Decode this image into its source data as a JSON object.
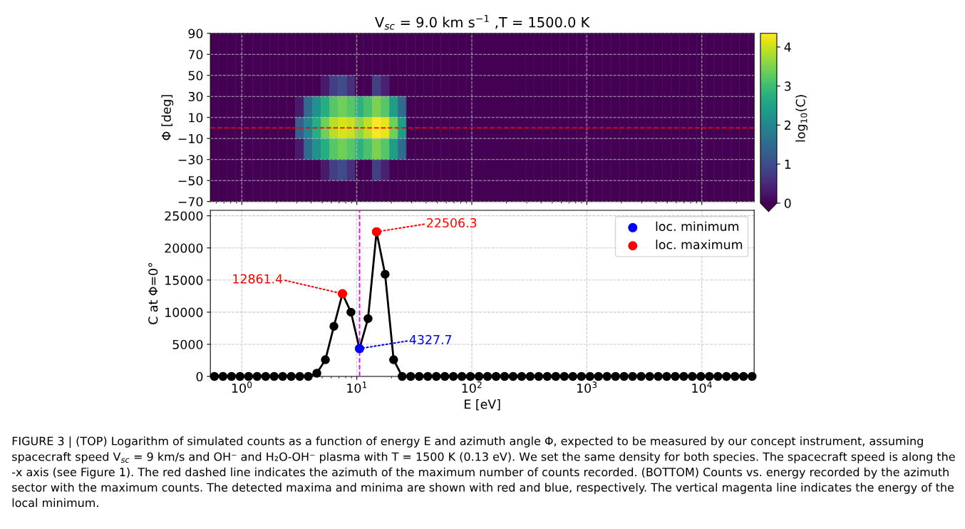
{
  "chart_data": [
    {
      "type": "heatmap",
      "title": "V$_{sc}$ = 9.0 km s$^{−1}$ ,T = 1500.0 K",
      "ylabel": "Φ [deg]",
      "clabel": "log$_{10}$(C)",
      "x": [
        0.578,
        0.686,
        0.814,
        0.965,
        1.145,
        1.358,
        1.612,
        1.912,
        2.268,
        2.691,
        3.192,
        3.787,
        4.493,
        5.33,
        6.323,
        7.499,
        8.897,
        10.55,
        12.52,
        14.85,
        17.62,
        20.9,
        24.8,
        29.42,
        34.9,
        41.4,
        49.12,
        58.27,
        69.13,
        82.01,
        97.3,
        115.4,
        136.9,
        162.4,
        192.7,
        228.6,
        271.2,
        321.7,
        381.7,
        452.8,
        537.0,
        637.2,
        755.9,
        896.8,
        1064,
        1262,
        1497,
        1776,
        2107,
        2500,
        2965,
        3518,
        4173,
        4951,
        5874,
        6966,
        8266,
        9804,
        11630,
        13800,
        16370,
        19420,
        23040,
        27340
      ],
      "cells": [
        [
          0,
          0,
          0,
          0,
          0,
          0,
          0,
          0,
          0,
          0,
          0,
          0,
          0,
          0,
          0,
          0,
          0,
          0,
          0,
          0,
          0,
          0,
          0,
          0,
          0,
          0,
          0,
          0,
          0,
          0,
          0,
          0,
          0,
          0,
          0,
          0,
          0,
          0,
          0,
          0,
          0,
          0,
          0,
          0,
          0,
          0,
          0,
          0,
          0,
          0,
          0,
          0,
          0,
          0,
          0,
          0,
          0,
          0,
          0,
          0,
          0,
          0,
          0,
          0
        ],
        [
          0,
          0,
          0,
          0,
          0,
          0,
          0,
          0,
          0,
          0,
          0,
          0,
          0,
          0,
          0,
          0,
          0,
          0,
          0,
          0,
          0,
          0,
          0,
          0,
          0,
          0,
          0,
          0,
          0,
          0,
          0,
          0,
          0,
          0,
          0,
          0,
          0,
          0,
          0,
          0,
          0,
          0,
          0,
          0,
          0,
          0,
          0,
          0,
          0,
          0,
          0,
          0,
          0,
          0,
          0,
          0,
          0,
          0,
          0,
          0,
          0,
          0,
          0,
          0
        ],
        [
          0,
          0,
          0,
          0,
          0,
          0,
          0,
          0,
          0,
          0,
          0,
          0,
          0,
          0.3,
          0.8,
          1.0,
          0.6,
          0,
          0,
          0.8,
          0.4,
          0,
          0,
          0,
          0,
          0,
          0,
          0,
          0,
          0,
          0,
          0,
          0,
          0,
          0,
          0,
          0,
          0,
          0,
          0,
          0,
          0,
          0,
          0,
          0,
          0,
          0,
          0,
          0,
          0,
          0,
          0,
          0,
          0,
          0,
          0,
          0,
          0,
          0,
          0,
          0,
          0,
          0,
          0
        ],
        [
          0,
          0,
          0,
          0,
          0,
          0,
          0,
          0,
          0,
          0,
          0.3,
          1.5,
          2.2,
          2.7,
          3.2,
          3.4,
          3.2,
          2.8,
          3.1,
          3.5,
          3.2,
          2.4,
          1.5,
          0,
          0,
          0,
          0,
          0,
          0,
          0,
          0,
          0,
          0,
          0,
          0,
          0,
          0,
          0,
          0,
          0,
          0,
          0,
          0,
          0,
          0,
          0,
          0,
          0,
          0,
          0,
          0,
          0,
          0,
          0,
          0,
          0,
          0,
          0,
          0,
          0,
          0,
          0,
          0,
          0
        ],
        [
          0,
          0,
          0,
          0,
          0,
          0,
          0,
          0,
          0,
          0,
          1.3,
          2.0,
          2.7,
          3.4,
          3.9,
          4.1,
          4.0,
          3.6,
          3.95,
          4.35,
          4.2,
          3.4,
          2.4,
          0,
          0,
          0,
          0,
          0,
          0,
          0,
          0,
          0,
          0,
          0,
          0,
          0,
          0,
          0,
          0,
          0,
          0,
          0,
          0,
          0,
          0,
          0,
          0,
          0,
          0,
          0,
          0,
          0,
          0,
          0,
          0,
          0,
          0,
          0,
          0,
          0,
          0,
          0,
          0,
          0
        ],
        [
          0,
          0,
          0,
          0,
          0,
          0,
          0,
          0,
          0,
          0,
          0.3,
          1.5,
          2.2,
          2.7,
          3.2,
          3.4,
          3.2,
          2.8,
          3.1,
          3.5,
          3.2,
          2.4,
          1.5,
          0,
          0,
          0,
          0,
          0,
          0,
          0,
          0,
          0,
          0,
          0,
          0,
          0,
          0,
          0,
          0,
          0,
          0,
          0,
          0,
          0,
          0,
          0,
          0,
          0,
          0,
          0,
          0,
          0,
          0,
          0,
          0,
          0,
          0,
          0,
          0,
          0,
          0,
          0,
          0,
          0
        ],
        [
          0,
          0,
          0,
          0,
          0,
          0,
          0,
          0,
          0,
          0,
          0,
          0,
          0,
          0.3,
          0.8,
          1.0,
          0.6,
          0,
          0,
          0.8,
          0.4,
          0,
          0,
          0,
          0,
          0,
          0,
          0,
          0,
          0,
          0,
          0,
          0,
          0,
          0,
          0,
          0,
          0,
          0,
          0,
          0,
          0,
          0,
          0,
          0,
          0,
          0,
          0,
          0,
          0,
          0,
          0,
          0,
          0,
          0,
          0,
          0,
          0,
          0,
          0,
          0,
          0,
          0,
          0
        ],
        [
          0,
          0,
          0,
          0,
          0,
          0,
          0,
          0,
          0,
          0,
          0,
          0,
          0,
          0,
          0,
          0,
          0,
          0,
          0,
          0,
          0,
          0,
          0,
          0,
          0,
          0,
          0,
          0,
          0,
          0,
          0,
          0,
          0,
          0,
          0,
          0,
          0,
          0,
          0,
          0,
          0,
          0,
          0,
          0,
          0,
          0,
          0,
          0,
          0,
          0,
          0,
          0,
          0,
          0,
          0,
          0,
          0,
          0,
          0,
          0,
          0,
          0,
          0,
          0
        ]
      ],
      "clim": [
        0,
        4.35
      ],
      "cticks": [
        0,
        1,
        2,
        3,
        4
      ],
      "log": "x",
      "xlim": [
        0.533,
        28500
      ],
      "xticks": [
        {
          "value": 1,
          "label": null
        },
        {
          "value": 10,
          "label": null
        },
        {
          "value": 100,
          "label": null
        },
        {
          "value": 1000,
          "label": null
        },
        {
          "value": 10000,
          "label": null
        }
      ],
      "ylim": [
        -70,
        90
      ],
      "yticks": [
        -70,
        -50,
        -30,
        -10,
        10,
        30,
        50,
        70,
        90
      ],
      "tick_labels": "y",
      "grid": true,
      "ref_lines": [
        {
          "axis": "y",
          "value": 0,
          "label": null,
          "color": "#ff0000",
          "line_style": "dashed"
        }
      ]
    },
    {
      "type": "line",
      "xlabel": "E [eV]",
      "ylabel": "C at Φ=0°",
      "log": "x",
      "marker": "circle",
      "grid": true,
      "legend": "top right",
      "x": [
        0.578,
        0.686,
        0.814,
        0.965,
        1.145,
        1.358,
        1.612,
        1.912,
        2.268,
        2.691,
        3.192,
        3.787,
        4.493,
        5.33,
        6.323,
        7.499,
        8.897,
        10.55,
        12.52,
        14.85,
        17.62,
        20.9,
        24.8,
        29.42,
        34.9,
        41.4,
        49.12,
        58.27,
        69.13,
        82.01,
        97.3,
        115.4,
        136.9,
        162.4,
        192.7,
        228.6,
        271.2,
        321.7,
        381.7,
        452.8,
        537.0,
        637.2,
        755.9,
        896.8,
        1064,
        1262,
        1497,
        1776,
        2107,
        2500,
        2965,
        3518,
        4173,
        4951,
        5874,
        6966,
        8266,
        9804,
        11630,
        13800,
        16370,
        19420,
        23040,
        27340
      ],
      "series": [
        {
          "color": "#000000",
          "values": [
            0,
            0,
            0,
            0,
            0,
            0,
            0,
            0,
            0,
            0,
            0,
            0,
            500,
            2600,
            7800,
            12861.4,
            10000,
            4327.7,
            9000,
            22506.3,
            15900,
            2600,
            0,
            0,
            0,
            0,
            0,
            0,
            0,
            0,
            0,
            0,
            0,
            0,
            0,
            0,
            0,
            0,
            0,
            0,
            0,
            0,
            0,
            0,
            0,
            0,
            0,
            0,
            0,
            0,
            0,
            0,
            0,
            0,
            0,
            0,
            0,
            0,
            0,
            0,
            0,
            0,
            0,
            0
          ]
        },
        {
          "name": "loc. minimum",
          "type": "scatter",
          "color": "#0000ff",
          "x": [
            10.55
          ],
          "values": [
            4327.7
          ]
        },
        {
          "name": "loc. maximum",
          "type": "scatter",
          "color": "#ff0000",
          "x": [
            7.499,
            14.85
          ],
          "values": [
            12861.4,
            22506.3
          ]
        }
      ],
      "xlim": [
        0.533,
        28500
      ],
      "xticks": [
        {
          "value": 1,
          "label": "10$^{0}$"
        },
        {
          "value": 10,
          "label": "10$^{1}$"
        },
        {
          "value": 100,
          "label": "10$^{2}$"
        },
        {
          "value": 1000,
          "label": "10$^{3}$"
        },
        {
          "value": 10000,
          "label": "10$^{4}$"
        }
      ],
      "ylim": [
        0,
        25850
      ],
      "yticks": [
        0,
        5000,
        10000,
        15000,
        20000,
        25000
      ],
      "ref_lines": [
        {
          "axis": "x",
          "value": 10.55,
          "label": null,
          "color": "#ff00ff",
          "line_style": "dashed"
        }
      ],
      "annotations": [
        {
          "text": "22506.3",
          "x": 14.85,
          "y": 22506.3
        },
        {
          "text": "12861.4",
          "x": 7.499,
          "y": 12861.4
        },
        {
          "text": "4327.7",
          "x": 10.55,
          "y": 4327.7
        },
        "FIGURE 3 | (TOP) Logarithm of simulated counts as a function of energy E and azimuth angle Φ, expected to be measured by our concept instrument, assuming spacecraft speed V$_{sc}$ = 9 km/s and OH⁻ and H₂O-OH⁻ plasma with T = 1500 K (0.13 eV). We set the same density for both species. The spacecraft speed is along the -x axis (see Figure 1). The red dashed line indicates the azimuth of the maximum number of counts recorded. (BOTTOM) Counts vs. energy recorded by the azimuth sector with the maximum counts. The detected maxima and minima are shown with red and blue, respectively. The vertical magenta line indicates the energy of the local minimum."
      ]
    }
  ]
}
